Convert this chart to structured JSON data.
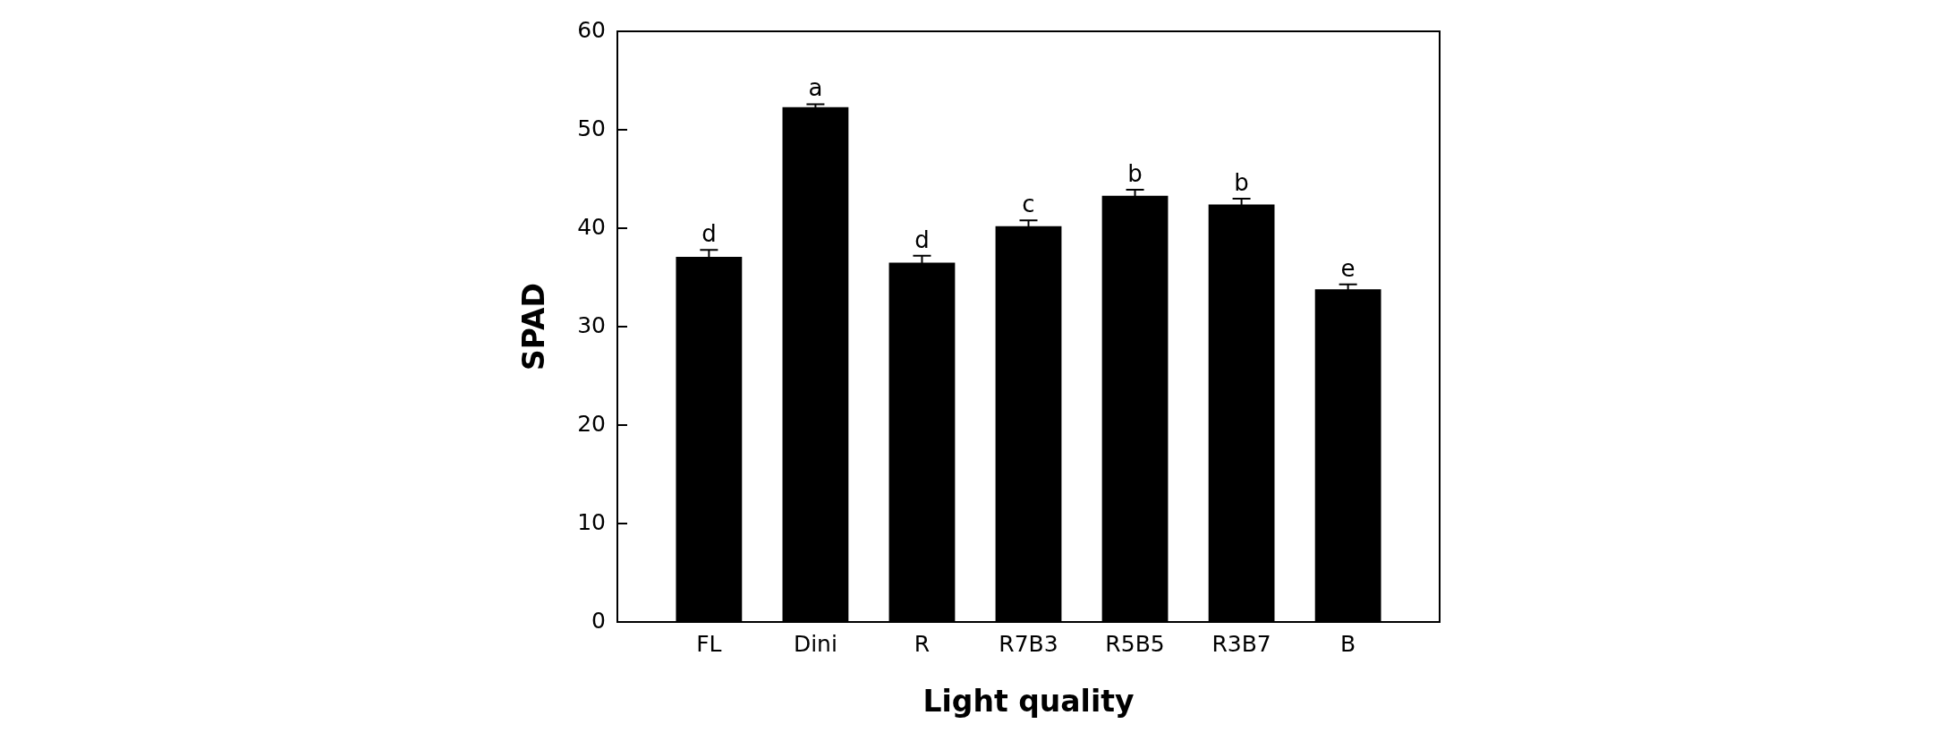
{
  "chart_data": {
    "type": "bar",
    "xlabel": "Light quality",
    "ylabel": "SPAD",
    "categories": [
      "FL",
      "Dini",
      "R",
      "R7B3",
      "R5B5",
      "R3B7",
      "B"
    ],
    "values": [
      37.1,
      52.3,
      36.5,
      40.2,
      43.3,
      42.4,
      33.8
    ],
    "errors": [
      0.7,
      0.3,
      0.7,
      0.6,
      0.6,
      0.6,
      0.5
    ],
    "color": "#000000",
    "ylim": [
      0,
      60
    ],
    "yticks": [
      0,
      10,
      20,
      30,
      40,
      50,
      60
    ],
    "annotations": [
      {
        "text": "d",
        "x": "FL",
        "y": 37.8
      },
      {
        "text": "a",
        "x": "Dini",
        "y": 52.6
      },
      {
        "text": "d",
        "x": "R",
        "y": 37.2
      },
      {
        "text": "c",
        "x": "R7B3",
        "y": 40.8
      },
      {
        "text": "b",
        "x": "R5B5",
        "y": 43.9
      },
      {
        "text": "b",
        "x": "R3B7",
        "y": 43.0
      },
      {
        "text": "e",
        "x": "B",
        "y": 34.3
      }
    ]
  }
}
